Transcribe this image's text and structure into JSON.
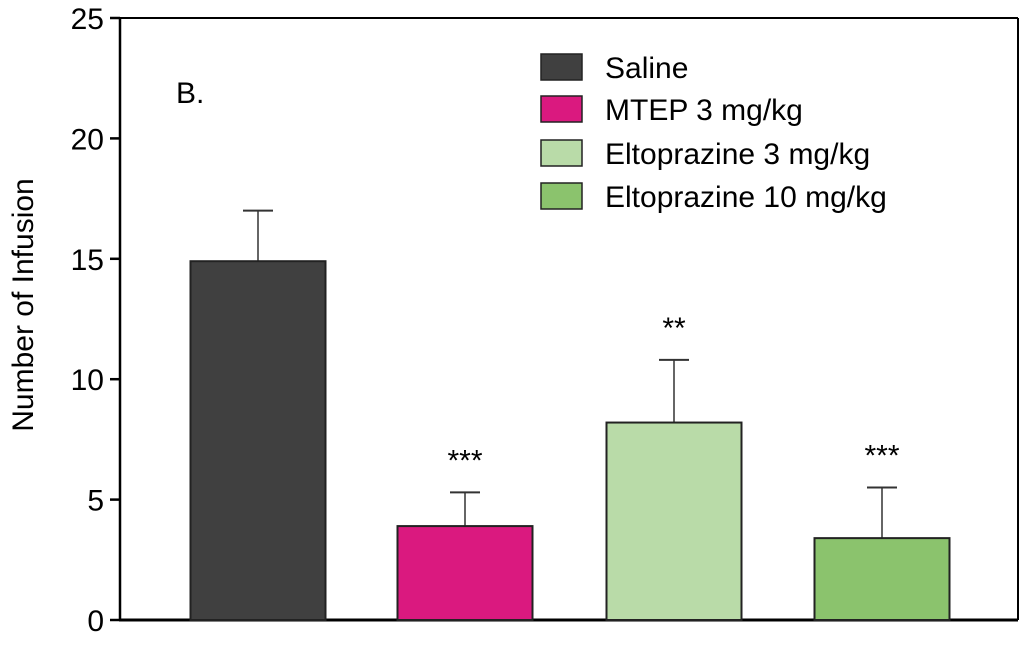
{
  "chart_data": {
    "type": "bar",
    "panel_label": "B.",
    "ylabel": "Number of Infusion",
    "xlabel": "",
    "ylim": [
      0,
      25
    ],
    "yticks": [
      0,
      5,
      10,
      15,
      20,
      25
    ],
    "grid": false,
    "legend_position": "top-right",
    "categories": [
      "Saline",
      "MTEP 3 mg/kg",
      "Eltoprazine 3 mg/kg",
      "Eltoprazine 10 mg/kg"
    ],
    "values": [
      14.9,
      3.9,
      8.2,
      3.4
    ],
    "error_upper": [
      17.0,
      5.3,
      10.8,
      5.5
    ],
    "significance": [
      "",
      "***",
      "**",
      "***"
    ],
    "colors": [
      "#404040",
      "#da197f",
      "#b9dba8",
      "#8bc36d"
    ]
  }
}
